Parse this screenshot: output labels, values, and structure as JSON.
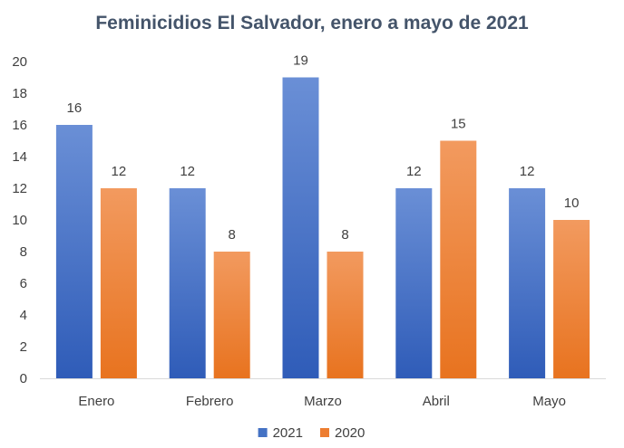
{
  "chart_data": {
    "type": "bar",
    "title": "Feminicidios El Salvador, enero a mayo de 2021",
    "xlabel": "",
    "ylabel": "",
    "categories": [
      "Enero",
      "Febrero",
      "Marzo",
      "Abril",
      "Mayo"
    ],
    "series": [
      {
        "name": "2021",
        "values": [
          16,
          12,
          19,
          12,
          12
        ],
        "color": "#4472c4"
      },
      {
        "name": "2020",
        "values": [
          12,
          8,
          8,
          15,
          10
        ],
        "color": "#ed7d31"
      }
    ],
    "ylim": [
      0,
      20
    ],
    "yticks": [
      "0",
      "2",
      "4",
      "6",
      "8",
      "10",
      "12",
      "14",
      "16",
      "18",
      "20"
    ],
    "grid": false,
    "data_labels": true,
    "legend": "bottom-center"
  }
}
